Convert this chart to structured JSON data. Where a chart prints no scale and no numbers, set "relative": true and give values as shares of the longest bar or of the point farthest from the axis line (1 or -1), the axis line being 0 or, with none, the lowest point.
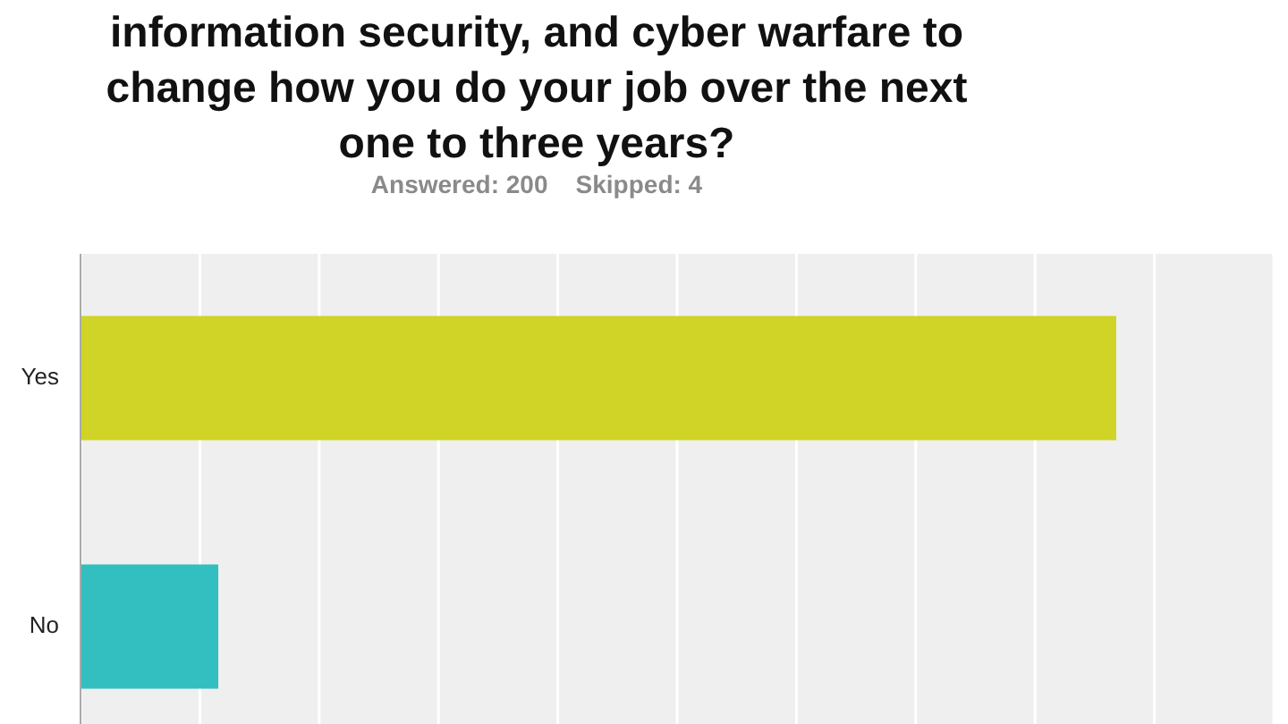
{
  "chart_data": {
    "type": "bar",
    "orientation": "horizontal",
    "relative": true,
    "title": "information security, and cyber warfare to change how you do your job over the next one to three years?",
    "subtitle": "Answered: 200    Skipped: 4",
    "categories": [
      "Yes",
      "No"
    ],
    "values": [
      1,
      0.133
    ],
    "colors": [
      "#cfd426",
      "#33bfc0"
    ],
    "grid": "x"
  }
}
